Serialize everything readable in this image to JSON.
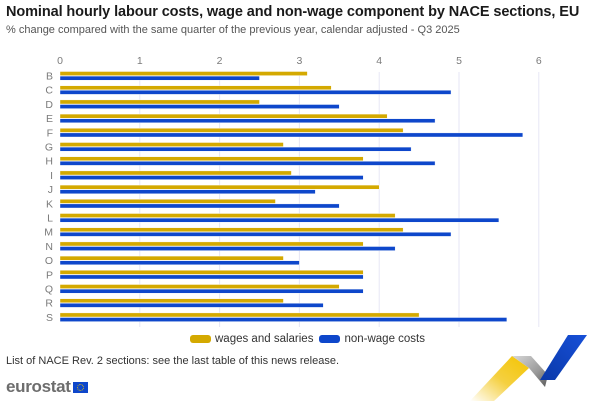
{
  "header": {
    "title": "Nominal hourly labour costs, wage and non-wage component by NACE sections, EU",
    "subtitle": "% change compared with the same quarter of the previous year, calendar adjusted - Q3 2025"
  },
  "footer": {
    "note": "List of NACE Rev. 2 sections: see the last table of this news release.",
    "logo_text": "eurostat"
  },
  "legend": {
    "items": [
      {
        "label": "wages and salaries",
        "color": "#d4a900"
      },
      {
        "label": "non-wage costs",
        "color": "#0e47cb"
      }
    ]
  },
  "chart_data": {
    "type": "bar",
    "orientation": "horizontal",
    "title": "Nominal hourly labour costs, wage and non-wage component by NACE sections, EU",
    "subtitle": "% change compared with the same quarter of the previous year, calendar adjusted - Q3 2025",
    "xlabel": "",
    "ylabel": "",
    "xlim": [
      0,
      6
    ],
    "x_ticks": [
      "0",
      "1",
      "2",
      "3",
      "4",
      "5",
      "6"
    ],
    "grid": true,
    "legend_position": "bottom",
    "categories": [
      "B",
      "C",
      "D",
      "E",
      "F",
      "G",
      "H",
      "I",
      "J",
      "K",
      "L",
      "M",
      "N",
      "O",
      "P",
      "Q",
      "R",
      "S"
    ],
    "series": [
      {
        "name": "wages and salaries",
        "color": "#d4a900",
        "values": [
          3.1,
          3.4,
          2.5,
          4.1,
          4.3,
          2.8,
          3.8,
          2.9,
          4.0,
          2.7,
          4.2,
          4.3,
          3.8,
          2.8,
          3.8,
          3.5,
          2.8,
          4.5
        ]
      },
      {
        "name": "non-wage costs",
        "color": "#0e47cb",
        "values": [
          2.5,
          4.9,
          3.5,
          4.7,
          5.8,
          4.4,
          4.7,
          3.8,
          3.2,
          3.5,
          5.5,
          4.9,
          4.2,
          3.0,
          3.8,
          3.8,
          3.3,
          5.6
        ]
      }
    ]
  }
}
